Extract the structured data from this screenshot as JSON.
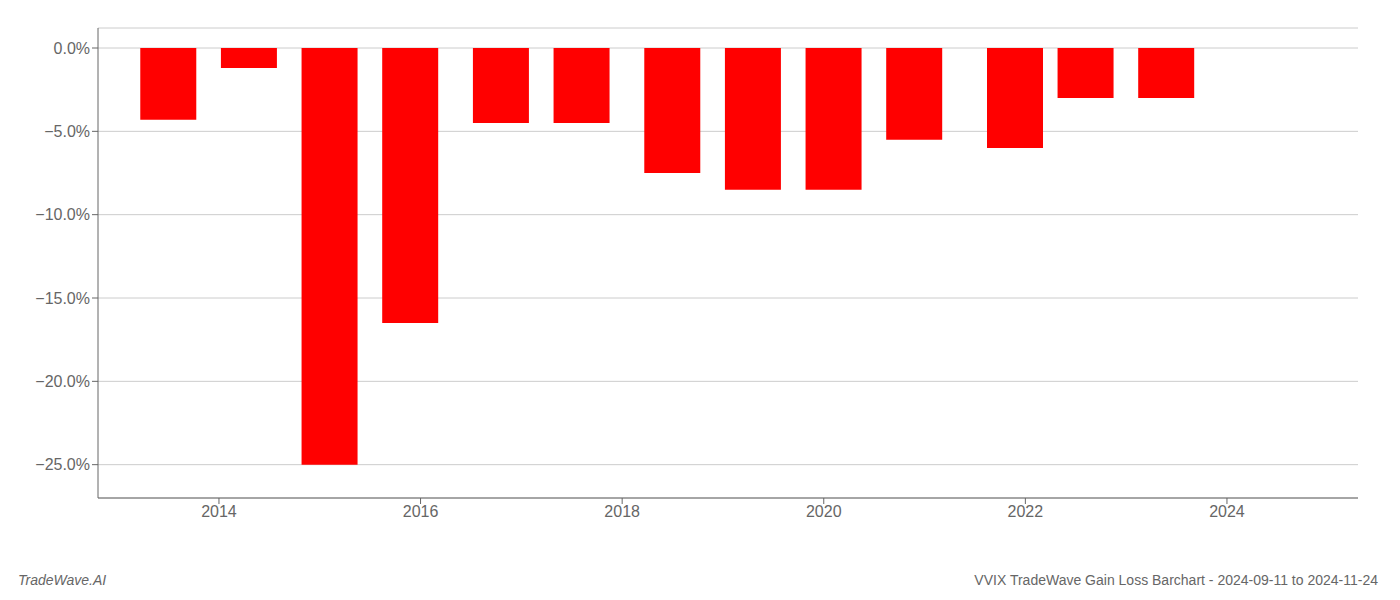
{
  "chart_data": {
    "type": "bar",
    "x": [
      2013.5,
      2014.3,
      2015.1,
      2015.9,
      2016.8,
      2017.6,
      2018.5,
      2019.3,
      2020.1,
      2020.9,
      2021.9,
      2022.6,
      2023.4
    ],
    "values": [
      -4.3,
      -1.2,
      -25.0,
      -16.5,
      -4.5,
      -4.5,
      -7.5,
      -8.5,
      -8.5,
      -5.5,
      -6.0,
      -3.0,
      -3.0
    ],
    "color": "#ff0000",
    "xlim": [
      2012.8,
      2025.3
    ],
    "xticks": [
      2014,
      2016,
      2018,
      2020,
      2022,
      2024
    ],
    "ylim": [
      -27,
      1.2
    ],
    "yticks": [
      {
        "value": 0.0,
        "label": "0.0%"
      },
      {
        "value": -5.0,
        "label": "−5.0%"
      },
      {
        "value": -10.0,
        "label": "−10.0%"
      },
      {
        "value": -15.0,
        "label": "−15.0%"
      },
      {
        "value": -20.0,
        "label": "−20.0%"
      },
      {
        "value": -25.0,
        "label": "−25.0%"
      }
    ],
    "grid": true,
    "annotations": [
      "TradeWave.AI",
      "VVIX TradeWave Gain Loss Barchart - 2024-09-11 to 2024-11-24"
    ]
  }
}
